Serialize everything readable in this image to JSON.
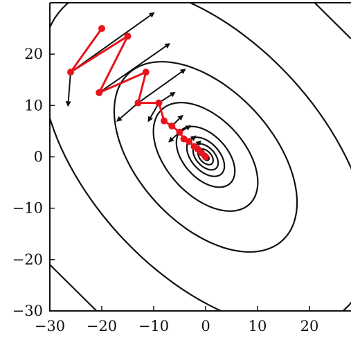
{
  "chart_data": {
    "type": "line",
    "title": "",
    "xlabel": "",
    "ylabel": "",
    "xlim": [
      -30,
      28
    ],
    "ylim": [
      -30,
      30
    ],
    "grid": false,
    "legend": "none",
    "x_ticks": [
      -30,
      -20,
      -10,
      0,
      10,
      20
    ],
    "y_ticks": [
      -30,
      -20,
      -10,
      0,
      10,
      20
    ],
    "x_tick_labels": [
      "−30",
      "−20",
      "−10",
      "0",
      "10",
      "20"
    ],
    "y_tick_labels": [
      "−30",
      "−20",
      "−10",
      "0",
      "10",
      "20"
    ],
    "colors": {
      "path": "#e8141c",
      "contour": "#111111",
      "arrow": "#111111"
    },
    "contour_ellipses": [
      {
        "center": [
          0,
          0
        ],
        "semi_major": 0.8,
        "semi_minor": 0.5,
        "angle_deg": 132
      },
      {
        "center": [
          0,
          0
        ],
        "semi_major": 1.8,
        "semi_minor": 1.1,
        "angle_deg": 132
      },
      {
        "center": [
          0,
          0
        ],
        "semi_major": 3.0,
        "semi_minor": 1.8,
        "angle_deg": 132
      },
      {
        "center": [
          0,
          0
        ],
        "semi_major": 4.5,
        "semi_minor": 2.7,
        "angle_deg": 132
      },
      {
        "center": [
          0,
          0
        ],
        "semi_major": 7.0,
        "semi_minor": 4.2,
        "angle_deg": 132
      },
      {
        "center": [
          0,
          0
        ],
        "semi_major": 12.5,
        "semi_minor": 7.5,
        "angle_deg": 132
      },
      {
        "center": [
          0,
          0
        ],
        "semi_major": 22.0,
        "semi_minor": 13.0,
        "angle_deg": 132
      },
      {
        "center": [
          0,
          0
        ],
        "semi_major": 40.0,
        "semi_minor": 22.5,
        "angle_deg": 132
      }
    ],
    "outer_contour_segments": [
      [
        [
          -30,
          -21
        ],
        [
          -21,
          -30
        ]
      ],
      [
        [
          21,
          30
        ],
        [
          28,
          23
        ]
      ]
    ],
    "series": [
      {
        "values_xy": [
          [
            -20,
            25
          ],
          [
            -26,
            16.5
          ],
          [
            -15,
            23.5
          ],
          [
            -20.5,
            12.5
          ],
          [
            -11.5,
            16.5
          ],
          [
            -13,
            10.5
          ],
          [
            -9,
            10.5
          ],
          [
            -8,
            7
          ],
          [
            -6.5,
            6
          ],
          [
            -5,
            4.8
          ],
          [
            -4.2,
            3.5
          ],
          [
            -3.2,
            3
          ],
          [
            -2.2,
            2
          ],
          [
            -1.5,
            1.5
          ],
          [
            -0.8,
            0.8
          ],
          [
            0,
            0
          ]
        ]
      }
    ],
    "gradient_arrows": [
      {
        "from": [
          -26,
          16.5
        ],
        "to": [
          -10,
          28
        ]
      },
      {
        "from": [
          -26,
          16.5
        ],
        "to": [
          -26.5,
          10
        ]
      },
      {
        "from": [
          -20.5,
          12.5
        ],
        "to": [
          -7,
          22
        ]
      },
      {
        "from": [
          -13,
          10.5
        ],
        "to": [
          -4,
          17
        ]
      },
      {
        "from": [
          -13,
          10.5
        ],
        "to": [
          -17,
          7
        ]
      },
      {
        "from": [
          -9,
          10.5
        ],
        "to": [
          -6,
          12.5
        ]
      },
      {
        "from": [
          -9,
          10.5
        ],
        "to": [
          -11,
          7
        ]
      },
      {
        "from": [
          -6.5,
          6
        ],
        "to": [
          -4.5,
          8
        ]
      },
      {
        "from": [
          -5,
          4.8
        ],
        "to": [
          -3,
          6
        ]
      },
      {
        "from": [
          -5,
          4.8
        ],
        "to": [
          -7,
          3
        ]
      },
      {
        "from": [
          -3.2,
          3
        ],
        "to": [
          -2,
          4
        ]
      },
      {
        "from": [
          -2.2,
          2
        ],
        "to": [
          -1,
          3
        ]
      }
    ]
  }
}
